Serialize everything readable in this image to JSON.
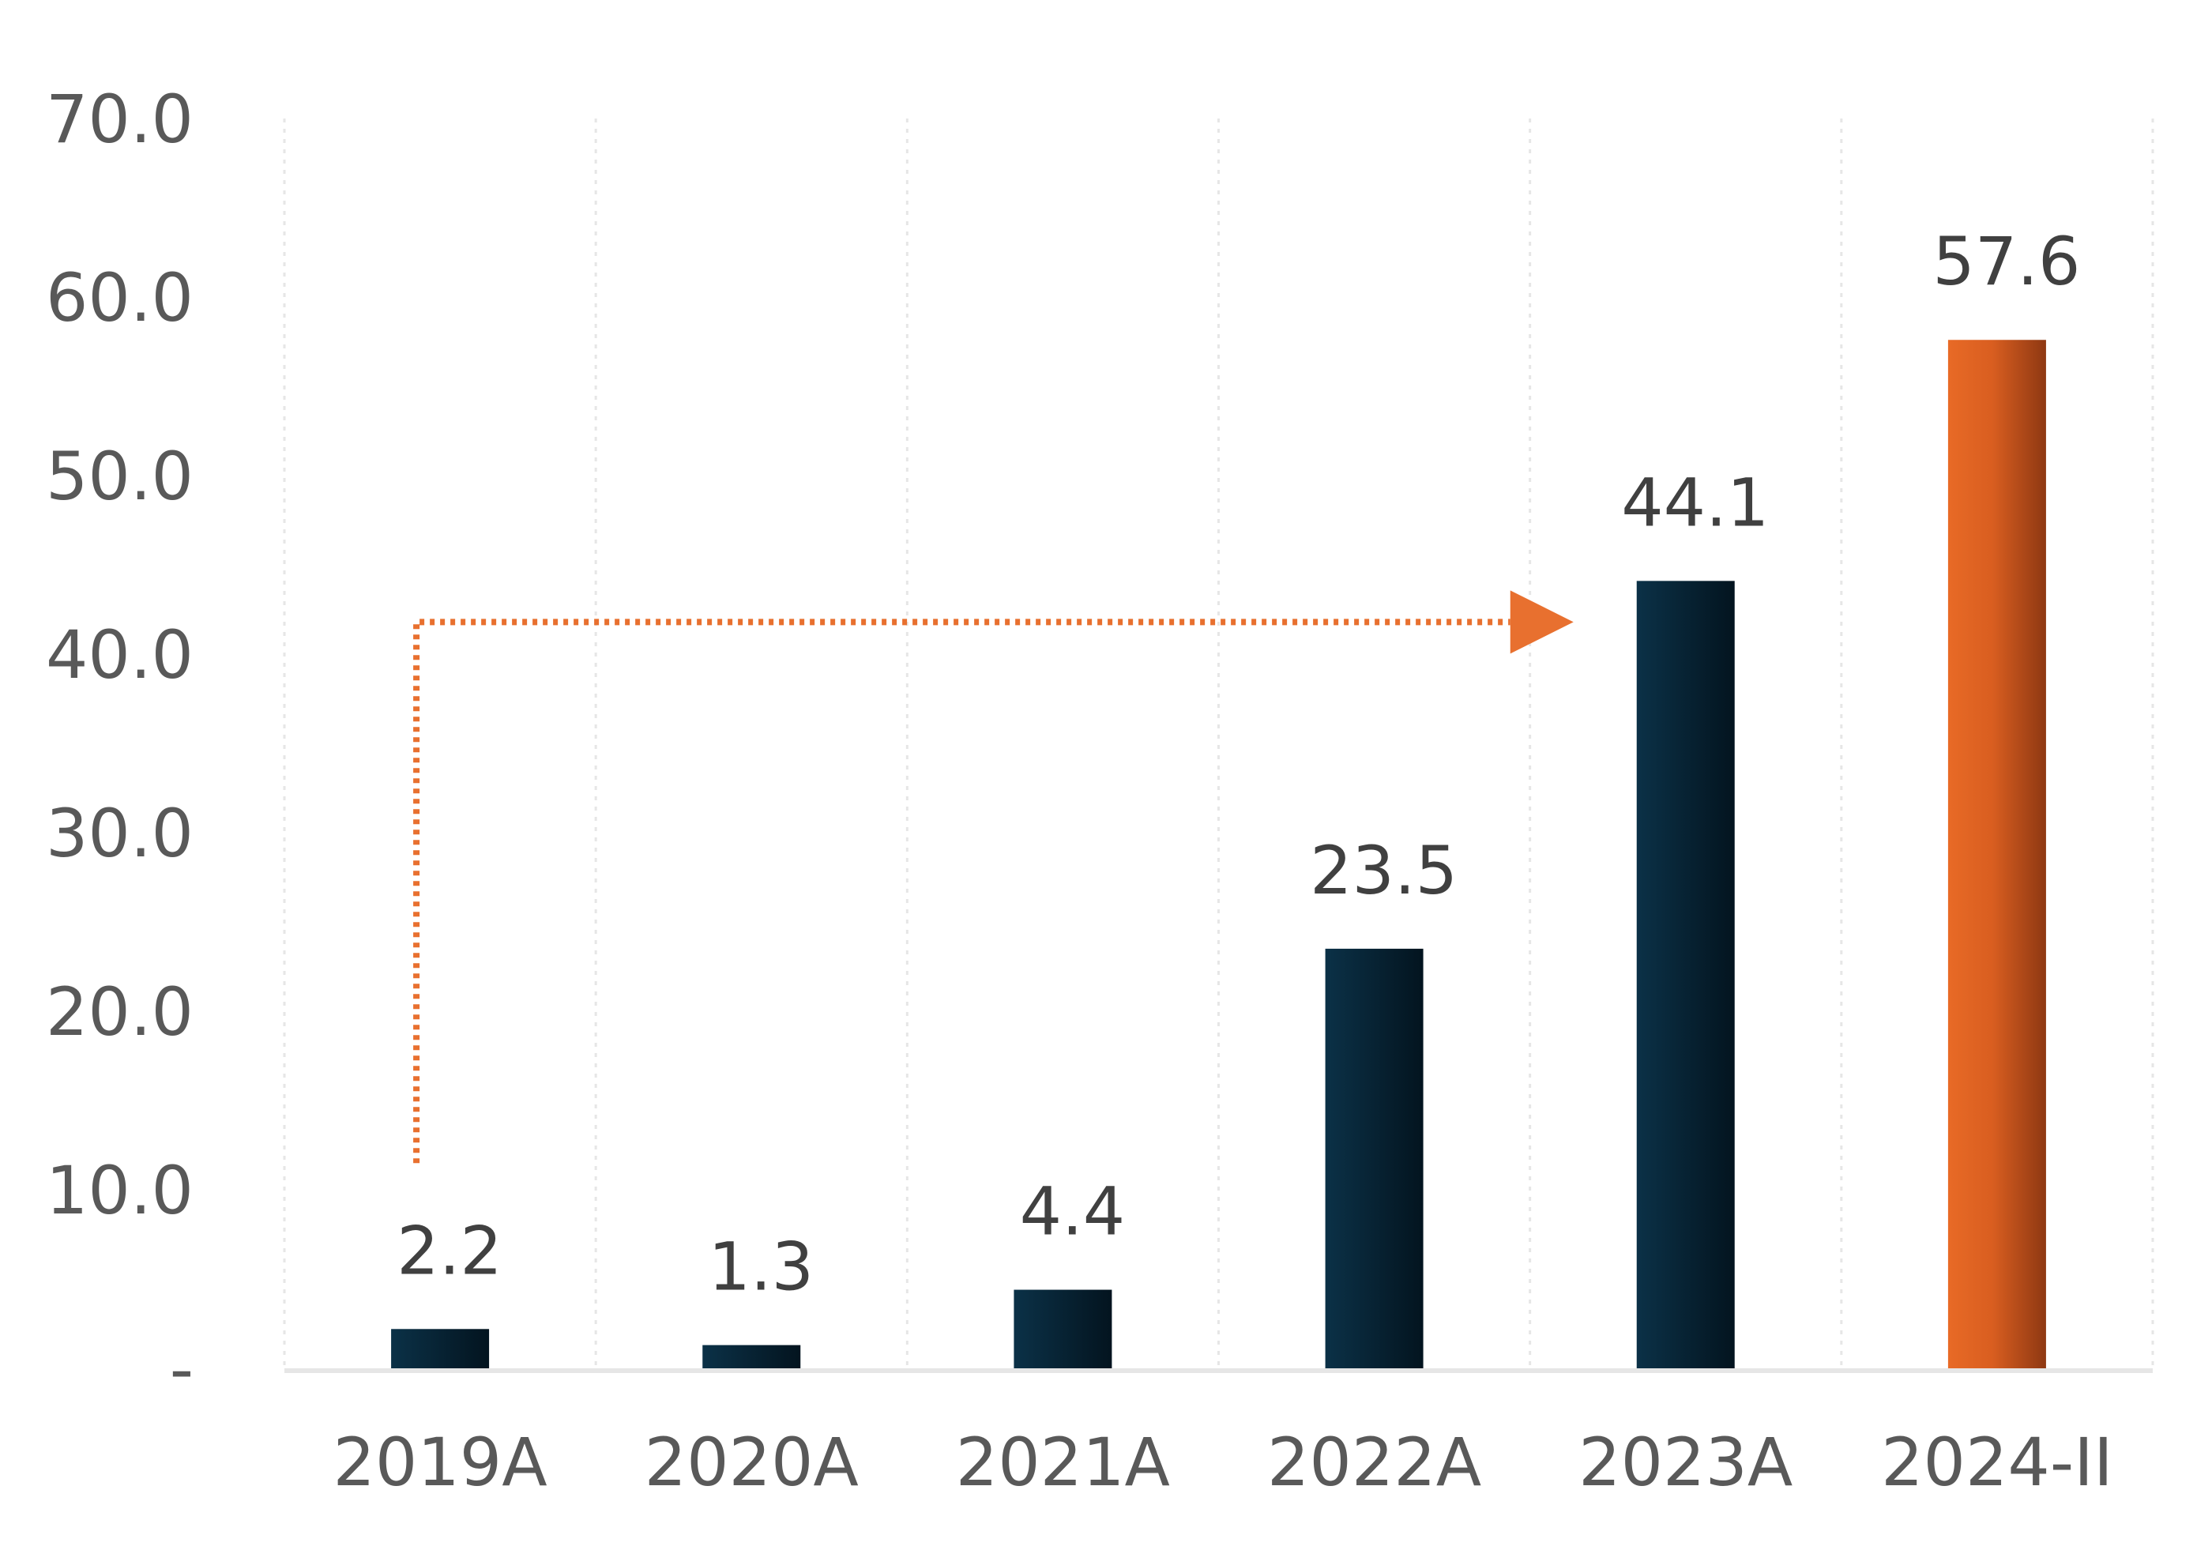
{
  "chart_data": {
    "type": "bar",
    "title": "",
    "xlabel": "",
    "ylabel": "",
    "categories": [
      "2019A",
      "2020A",
      "2021A",
      "2022A",
      "2023A",
      "2024-II"
    ],
    "values": [
      2.2,
      1.3,
      4.4,
      23.5,
      44.1,
      57.6
    ],
    "value_labels": [
      "2.2",
      "1.3",
      "4.4",
      "23.5",
      "44.1",
      "57.6"
    ],
    "ylim": [
      0,
      70
    ],
    "yticks": [
      0,
      10,
      20,
      30,
      40,
      50,
      60,
      70
    ],
    "ytick_labels": [
      "-",
      "10.0",
      "20.0",
      "30.0",
      "40.0",
      "50.0",
      "60.0",
      "70.0"
    ],
    "grid": "vertical-dotted",
    "bar_colors": [
      "#0b2b3e",
      "#0b2b3e",
      "#0b2b3e",
      "#0b2b3e",
      "#0b2b3e",
      "#e86a26"
    ],
    "annotation": {
      "type": "dotted-arrow",
      "color": "#e8702f",
      "from_category": "2019A",
      "to_category": "2023A",
      "y_value": 41.8
    }
  }
}
